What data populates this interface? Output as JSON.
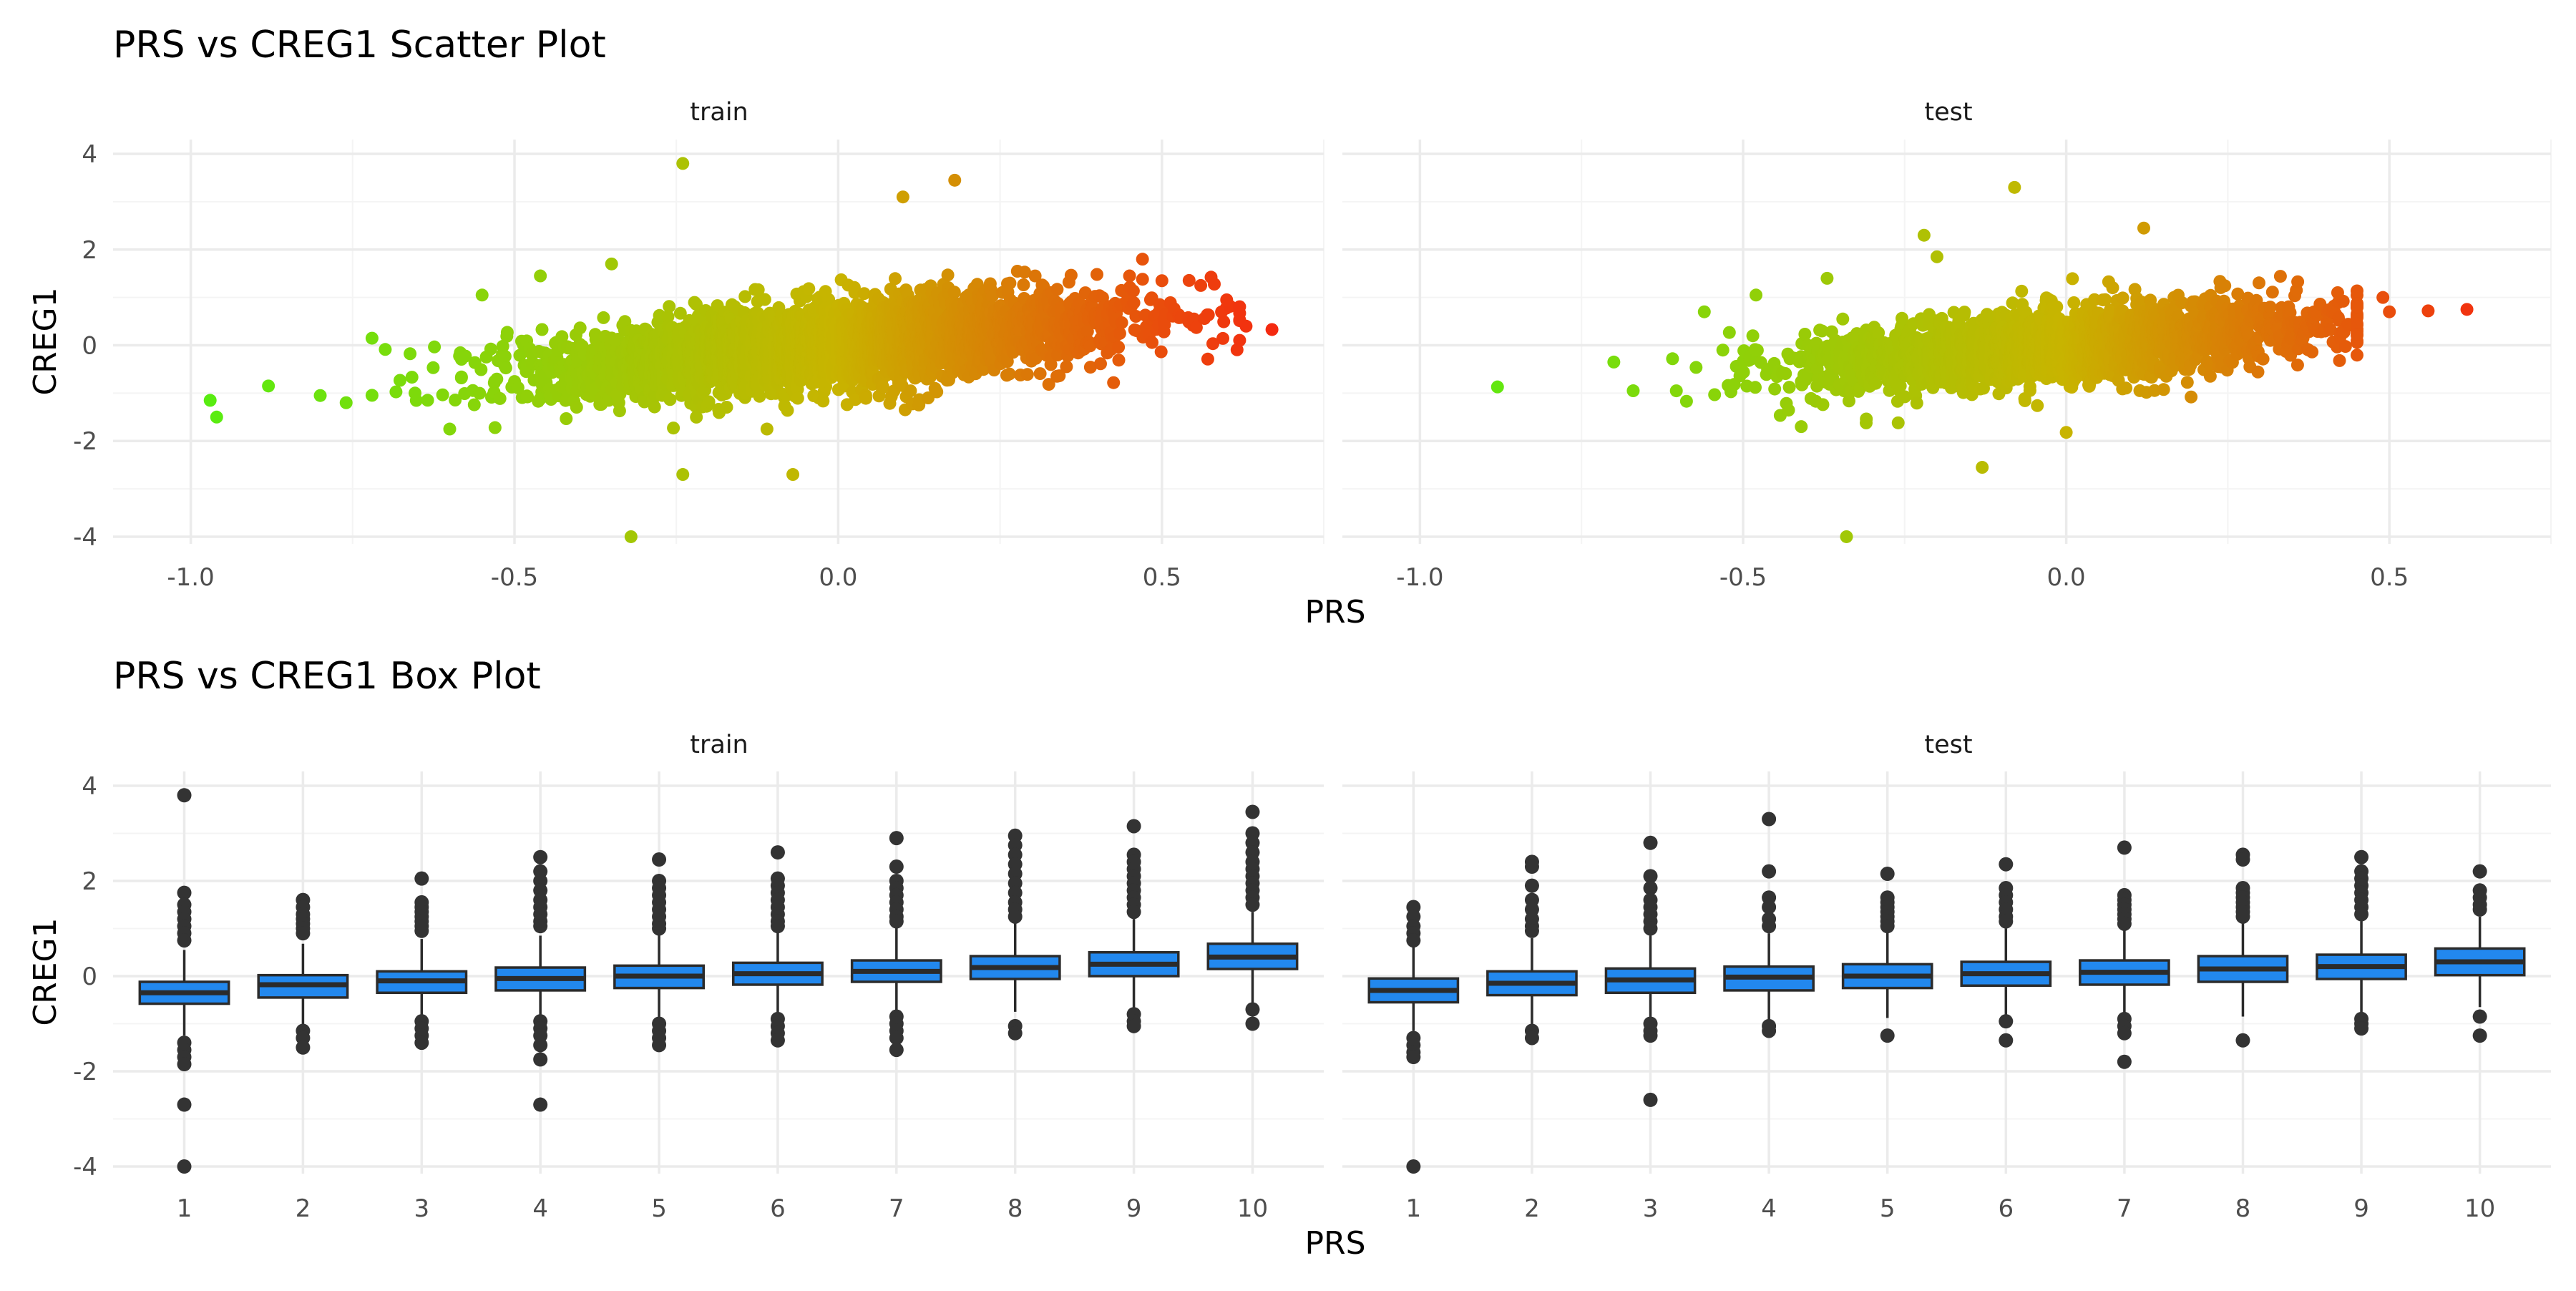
{
  "chart_data": [
    {
      "type": "scatter",
      "title": "PRS vs CREG1 Scatter Plot",
      "xlabel": "PRS",
      "ylabel": "CREG1",
      "facets": [
        "train",
        "test"
      ],
      "xlim": [
        -1.12,
        0.75
      ],
      "ylim": [
        -4.15,
        4.3
      ],
      "x_ticks": [
        -1.0,
        -0.5,
        0.0,
        0.5
      ],
      "x_tick_labels": [
        "-1.0",
        "-0.5",
        "0.0",
        "0.5"
      ],
      "y_ticks": [
        -4,
        -2,
        0,
        2,
        4
      ],
      "y_tick_labels": [
        "-4",
        "-2",
        "0",
        "2",
        "4"
      ],
      "color_scale": {
        "low": "#55ee11",
        "mid": "#c8b400",
        "high": "#f52810",
        "domain": [
          -1.0,
          0.0,
          0.68
        ]
      },
      "grid": true,
      "legend": "none",
      "point_cloud": {
        "train": {
          "n": 3800,
          "x_mean": -0.02,
          "x_sd": 0.22,
          "slope": 1.15,
          "resid_sd": 0.42,
          "x_range": [
            -0.72,
            0.62
          ]
        },
        "test": {
          "n": 2300,
          "x_mean": -0.02,
          "x_sd": 0.2,
          "slope": 1.0,
          "resid_sd": 0.38,
          "x_range": [
            -0.66,
            0.45
          ]
        }
      },
      "points": {
        "train": [
          {
            "x": -0.97,
            "y": -1.15
          },
          {
            "x": -0.96,
            "y": -1.5
          },
          {
            "x": -0.88,
            "y": -0.85
          },
          {
            "x": -0.8,
            "y": -1.05
          },
          {
            "x": -0.76,
            "y": -1.2
          },
          {
            "x": -0.24,
            "y": 3.8
          },
          {
            "x": -0.32,
            "y": -4.0
          },
          {
            "x": -0.24,
            "y": -2.7
          },
          {
            "x": -0.07,
            "y": -2.7
          },
          {
            "x": 0.18,
            "y": 3.45
          },
          {
            "x": 0.1,
            "y": 3.1
          },
          {
            "x": 0.6,
            "y": 0.95
          },
          {
            "x": 0.63,
            "y": 0.4
          },
          {
            "x": 0.67,
            "y": 0.33
          },
          {
            "x": 0.56,
            "y": 1.25
          },
          {
            "x": -0.55,
            "y": 1.05
          },
          {
            "x": -0.46,
            "y": 1.45
          },
          {
            "x": -0.35,
            "y": 1.7
          },
          {
            "x": -0.11,
            "y": -1.75
          },
          {
            "x": 0.47,
            "y": 1.8
          },
          {
            "x": -0.53,
            "y": -1.72
          },
          {
            "x": -0.6,
            "y": -1.75
          },
          {
            "x": 0.5,
            "y": 1.35
          },
          {
            "x": 0.45,
            "y": 1.45
          }
        ],
        "test": [
          {
            "x": -0.88,
            "y": -0.87
          },
          {
            "x": -0.08,
            "y": 3.3
          },
          {
            "x": -0.34,
            "y": -4.0
          },
          {
            "x": -0.13,
            "y": -2.55
          },
          {
            "x": 0.0,
            "y": -1.82
          },
          {
            "x": 0.62,
            "y": 0.75
          },
          {
            "x": 0.56,
            "y": 0.72
          },
          {
            "x": 0.49,
            "y": 1.0
          },
          {
            "x": 0.5,
            "y": 0.7
          },
          {
            "x": -0.22,
            "y": 2.3
          },
          {
            "x": -0.2,
            "y": 1.85
          },
          {
            "x": -0.37,
            "y": 1.4
          },
          {
            "x": -0.48,
            "y": 1.05
          },
          {
            "x": -0.56,
            "y": 0.7
          },
          {
            "x": 0.12,
            "y": 2.45
          },
          {
            "x": -0.41,
            "y": -1.7
          },
          {
            "x": -0.26,
            "y": -1.62
          },
          {
            "x": -0.7,
            "y": -0.35
          },
          {
            "x": -0.67,
            "y": -0.95
          },
          {
            "x": 0.42,
            "y": 1.1
          }
        ]
      }
    },
    {
      "type": "box",
      "title": "PRS vs CREG1 Box Plot",
      "xlabel": "PRS",
      "ylabel": "CREG1",
      "facets": [
        "train",
        "test"
      ],
      "categories": [
        "1",
        "2",
        "3",
        "4",
        "5",
        "6",
        "7",
        "8",
        "9",
        "10"
      ],
      "ylim": [
        -4.15,
        4.3
      ],
      "y_ticks": [
        -4,
        -2,
        0,
        2,
        4
      ],
      "y_tick_labels": [
        "-4",
        "-2",
        "0",
        "2",
        "4"
      ],
      "box_fill": "#2288ee",
      "box_stroke": "#2b2b2b",
      "grid": true,
      "legend": "none",
      "boxes": {
        "train": [
          {
            "category": "1",
            "q1": -0.58,
            "median": -0.35,
            "q3": -0.12,
            "whisker_low": -1.25,
            "whisker_high": 0.55,
            "outliers": [
              3.8,
              1.75,
              1.5,
              1.35,
              1.2,
              1.05,
              0.9,
              0.75,
              -1.4,
              -1.55,
              -1.7,
              -1.85,
              -2.7,
              -4.0
            ]
          },
          {
            "category": "2",
            "q1": -0.45,
            "median": -0.18,
            "q3": 0.02,
            "whisker_low": -1.05,
            "whisker_high": 0.68,
            "outliers": [
              1.6,
              1.45,
              1.3,
              1.2,
              1.1,
              1.0,
              0.9,
              -1.15,
              -1.3,
              -1.5
            ]
          },
          {
            "category": "3",
            "q1": -0.35,
            "median": -0.1,
            "q3": 0.1,
            "whisker_low": -0.85,
            "whisker_high": 0.78,
            "outliers": [
              2.05,
              1.55,
              1.45,
              1.35,
              1.25,
              1.15,
              1.05,
              0.95,
              -0.95,
              -1.1,
              -1.25,
              -1.4
            ]
          },
          {
            "category": "4",
            "q1": -0.3,
            "median": -0.05,
            "q3": 0.18,
            "whisker_low": -0.85,
            "whisker_high": 0.85,
            "outliers": [
              2.5,
              2.2,
              2.0,
              1.8,
              1.6,
              1.45,
              1.3,
              1.15,
              1.05,
              -0.95,
              -1.1,
              -1.25,
              -1.45,
              -1.75,
              -2.7
            ]
          },
          {
            "category": "5",
            "q1": -0.25,
            "median": 0.0,
            "q3": 0.22,
            "whisker_low": -0.88,
            "whisker_high": 0.9,
            "outliers": [
              2.45,
              2.0,
              1.85,
              1.7,
              1.55,
              1.4,
              1.25,
              1.1,
              1.0,
              -1.0,
              -1.15,
              -1.3,
              -1.45
            ]
          },
          {
            "category": "6",
            "q1": -0.18,
            "median": 0.05,
            "q3": 0.28,
            "whisker_low": -0.82,
            "whisker_high": 0.98,
            "outliers": [
              2.6,
              2.05,
              1.9,
              1.75,
              1.6,
              1.45,
              1.3,
              1.15,
              1.05,
              -0.9,
              -1.05,
              -1.2,
              -1.35
            ]
          },
          {
            "category": "7",
            "q1": -0.12,
            "median": 0.1,
            "q3": 0.33,
            "whisker_low": -0.8,
            "whisker_high": 1.05,
            "outliers": [
              2.9,
              2.3,
              2.0,
              1.85,
              1.7,
              1.55,
              1.4,
              1.25,
              1.15,
              -0.85,
              -1.0,
              -1.15,
              -1.3,
              -1.55
            ]
          },
          {
            "category": "8",
            "q1": -0.06,
            "median": 0.18,
            "q3": 0.42,
            "whisker_low": -0.75,
            "whisker_high": 1.12,
            "outliers": [
              2.95,
              2.75,
              2.55,
              2.35,
              2.15,
              1.95,
              1.75,
              1.55,
              1.4,
              1.25,
              -1.05,
              -1.2
            ]
          },
          {
            "category": "9",
            "q1": 0.0,
            "median": 0.25,
            "q3": 0.5,
            "whisker_low": -0.72,
            "whisker_high": 1.2,
            "outliers": [
              3.15,
              2.55,
              2.4,
              2.25,
              2.1,
              1.95,
              1.8,
              1.65,
              1.5,
              1.35,
              -0.8,
              -0.95,
              -1.05
            ]
          },
          {
            "category": "10",
            "q1": 0.15,
            "median": 0.4,
            "q3": 0.68,
            "whisker_low": -0.6,
            "whisker_high": 1.35,
            "outliers": [
              3.45,
              3.0,
              2.8,
              2.6,
              2.4,
              2.25,
              2.1,
              1.95,
              1.8,
              1.65,
              1.5,
              -0.7,
              -1.0
            ]
          }
        ],
        "test": [
          {
            "category": "1",
            "q1": -0.55,
            "median": -0.3,
            "q3": -0.05,
            "whisker_low": -1.15,
            "whisker_high": 0.62,
            "outliers": [
              1.45,
              1.25,
              1.05,
              0.9,
              0.75,
              -1.3,
              -1.45,
              -1.6,
              -1.7,
              -4.0
            ]
          },
          {
            "category": "2",
            "q1": -0.4,
            "median": -0.15,
            "q3": 0.1,
            "whisker_low": -1.05,
            "whisker_high": 0.8,
            "outliers": [
              2.4,
              2.3,
              1.9,
              1.6,
              1.4,
              1.2,
              1.05,
              0.95,
              -1.15,
              -1.3
            ]
          },
          {
            "category": "3",
            "q1": -0.35,
            "median": -0.08,
            "q3": 0.16,
            "whisker_low": -0.9,
            "whisker_high": 0.85,
            "outliers": [
              2.8,
              2.1,
              1.85,
              1.6,
              1.45,
              1.3,
              1.15,
              1.0,
              -1.0,
              -1.15,
              -1.25,
              -2.6
            ]
          },
          {
            "category": "4",
            "q1": -0.3,
            "median": -0.02,
            "q3": 0.2,
            "whisker_low": -0.95,
            "whisker_high": 0.9,
            "outliers": [
              3.3,
              2.2,
              1.65,
              1.45,
              1.2,
              1.05,
              -1.05,
              -1.15
            ]
          },
          {
            "category": "5",
            "q1": -0.25,
            "median": 0.0,
            "q3": 0.25,
            "whisker_low": -0.88,
            "whisker_high": 0.95,
            "outliers": [
              2.15,
              1.65,
              1.55,
              1.45,
              1.35,
              1.25,
              1.15,
              1.05,
              -1.25
            ]
          },
          {
            "category": "6",
            "q1": -0.2,
            "median": 0.05,
            "q3": 0.3,
            "whisker_low": -0.85,
            "whisker_high": 1.0,
            "outliers": [
              2.35,
              1.85,
              1.7,
              1.55,
              1.4,
              1.25,
              1.15,
              -0.95,
              -1.35
            ]
          },
          {
            "category": "7",
            "q1": -0.18,
            "median": 0.08,
            "q3": 0.33,
            "whisker_low": -0.85,
            "whisker_high": 1.02,
            "outliers": [
              2.7,
              1.7,
              1.6,
              1.5,
              1.4,
              1.3,
              1.2,
              1.1,
              -0.9,
              -1.05,
              -1.2,
              -1.8
            ]
          },
          {
            "category": "8",
            "q1": -0.12,
            "median": 0.15,
            "q3": 0.42,
            "whisker_low": -0.85,
            "whisker_high": 1.12,
            "outliers": [
              2.55,
              2.45,
              1.85,
              1.75,
              1.65,
              1.55,
              1.45,
              1.35,
              1.25,
              -1.35
            ]
          },
          {
            "category": "9",
            "q1": -0.06,
            "median": 0.2,
            "q3": 0.45,
            "whisker_low": -0.8,
            "whisker_high": 1.15,
            "outliers": [
              2.5,
              2.2,
              2.05,
              1.9,
              1.75,
              1.6,
              1.45,
              1.3,
              -0.9,
              -1.0,
              -1.1
            ]
          },
          {
            "category": "10",
            "q1": 0.02,
            "median": 0.3,
            "q3": 0.58,
            "whisker_low": -0.65,
            "whisker_high": 1.25,
            "outliers": [
              2.2,
              1.8,
              1.65,
              1.5,
              1.4,
              -0.85,
              -1.25
            ]
          }
        ]
      }
    }
  ]
}
